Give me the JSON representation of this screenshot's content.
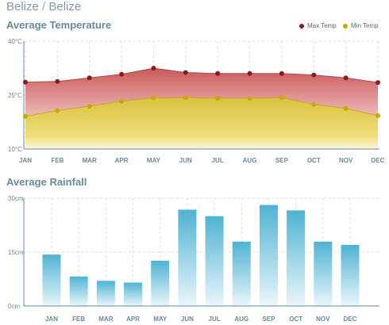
{
  "header": {
    "country": "Belize",
    "separator": "/",
    "city": "Belize"
  },
  "temperature": {
    "title": "Average Temperature",
    "legend": [
      {
        "name": "Max Temp",
        "color": "#8b1a1a"
      },
      {
        "name": "Min Temp",
        "color": "#c9a800"
      }
    ]
  },
  "rainfall": {
    "title": "Average Rainfall"
  },
  "chart_data": [
    {
      "type": "area",
      "title": "Average Temperature",
      "categories": [
        "JAN",
        "FEB",
        "MAR",
        "APR",
        "MAY",
        "JUN",
        "JUL",
        "AUG",
        "SEP",
        "OCT",
        "NOV",
        "DEC"
      ],
      "ylim": [
        10,
        40
      ],
      "yticks": [
        "10°C",
        "25°C",
        "40°C"
      ],
      "ytick_values": [
        10,
        25,
        40
      ],
      "grid": true,
      "legend_position": "top-right",
      "series": [
        {
          "name": "Max Temp",
          "color": "#8b1a1a",
          "values": [
            28.6,
            28.8,
            29.8,
            30.8,
            32.5,
            31.3,
            31.0,
            31.0,
            31.0,
            30.6,
            29.8,
            28.5
          ]
        },
        {
          "name": "Min Temp",
          "color": "#c9a800",
          "values": [
            19.1,
            20.7,
            21.9,
            23.3,
            24.2,
            24.3,
            24.1,
            24.1,
            24.3,
            22.4,
            21.3,
            19.3
          ]
        }
      ]
    },
    {
      "type": "bar",
      "title": "Average Rainfall",
      "categories": [
        "JAN",
        "FEB",
        "MAR",
        "APR",
        "MAY",
        "JUN",
        "JUL",
        "AUG",
        "SEP",
        "OCT",
        "NOV",
        "DEC"
      ],
      "values": [
        14.3,
        8.2,
        7.0,
        6.5,
        12.6,
        26.8,
        25.0,
        17.9,
        28.1,
        26.6,
        17.9,
        17.0
      ],
      "ylim": [
        0,
        30
      ],
      "yticks": [
        "0cm",
        "15cm",
        "30cm"
      ],
      "ytick_values": [
        0,
        15,
        30
      ],
      "grid": true
    }
  ]
}
